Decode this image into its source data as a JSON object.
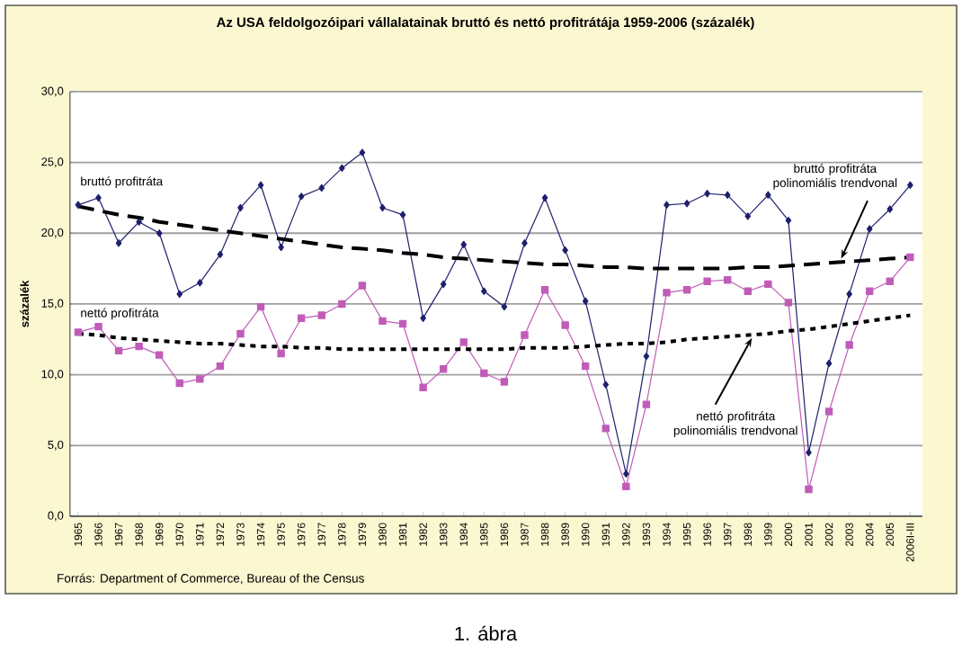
{
  "chart_data": {
    "type": "line",
    "title": "Az USA feldolgozóipari vállalatainak bruttó és nettó profitrátája 1959-2006 (százalék)",
    "ylabel": "százalék",
    "categories": [
      "1965",
      "1966",
      "1967",
      "1968",
      "1969",
      "1970",
      "1971",
      "1972",
      "1973",
      "1974",
      "1975",
      "1976",
      "1977",
      "1978",
      "1979",
      "1980",
      "1981",
      "1982",
      "1983",
      "1984",
      "1985",
      "1986",
      "1987",
      "1988",
      "1989",
      "1990",
      "1991",
      "1992",
      "1993",
      "1994",
      "1995",
      "1996",
      "1997",
      "1998",
      "1999",
      "2000",
      "2001",
      "2002",
      "2003",
      "2004",
      "2005",
      "2006I-III"
    ],
    "series": [
      {
        "name": "bruttó profitráta",
        "color": "#1f1f6e",
        "marker": "diamond",
        "values": [
          22.0,
          22.5,
          19.3,
          20.8,
          20.0,
          15.7,
          16.5,
          18.5,
          21.8,
          23.4,
          19.0,
          22.6,
          23.2,
          24.6,
          25.7,
          21.8,
          21.3,
          14.0,
          16.4,
          19.2,
          15.9,
          14.8,
          19.3,
          22.5,
          18.8,
          15.2,
          9.3,
          3.0,
          11.3,
          22.0,
          22.1,
          22.8,
          22.7,
          21.2,
          22.7,
          20.9,
          4.5,
          10.8,
          15.7,
          20.3,
          21.7,
          23.4
        ]
      },
      {
        "name": "nettó profitráta",
        "color": "#c05cb8",
        "marker": "square",
        "values": [
          13.0,
          13.4,
          11.7,
          12.0,
          11.4,
          9.4,
          9.7,
          10.6,
          12.9,
          14.8,
          11.5,
          14.0,
          14.2,
          15.0,
          16.3,
          13.8,
          13.6,
          9.1,
          10.4,
          12.3,
          10.1,
          9.5,
          12.8,
          16.0,
          13.5,
          10.6,
          6.2,
          2.1,
          7.9,
          15.8,
          16.0,
          16.6,
          16.7,
          15.9,
          16.4,
          15.1,
          1.9,
          7.4,
          12.1,
          15.9,
          16.6,
          18.3
        ]
      },
      {
        "name": "bruttó profitráta polinomiális trendvonal",
        "type": "line",
        "color": "#000000",
        "marker": "none",
        "line_style": "dashed",
        "values": [
          21.9,
          21.6,
          21.3,
          21.1,
          20.8,
          20.6,
          20.4,
          20.2,
          20.0,
          19.8,
          19.6,
          19.4,
          19.2,
          19.0,
          18.9,
          18.8,
          18.6,
          18.5,
          18.3,
          18.2,
          18.1,
          18.0,
          17.9,
          17.8,
          17.8,
          17.7,
          17.6,
          17.6,
          17.5,
          17.5,
          17.5,
          17.5,
          17.5,
          17.6,
          17.6,
          17.7,
          17.8,
          17.9,
          18.0,
          18.1,
          18.2,
          18.3
        ]
      },
      {
        "name": "nettó profitráta polinomiális trendvonal",
        "type": "line",
        "color": "#000000",
        "marker": "none",
        "line_style": "dotted",
        "values": [
          12.9,
          12.8,
          12.6,
          12.5,
          12.4,
          12.3,
          12.2,
          12.2,
          12.1,
          12.0,
          12.0,
          11.9,
          11.9,
          11.8,
          11.8,
          11.8,
          11.8,
          11.8,
          11.8,
          11.8,
          11.8,
          11.8,
          11.9,
          11.9,
          11.9,
          12.0,
          12.1,
          12.2,
          12.2,
          12.3,
          12.5,
          12.6,
          12.7,
          12.8,
          12.9,
          13.1,
          13.2,
          13.4,
          13.6,
          13.8,
          14.0,
          14.2
        ]
      }
    ],
    "ylim": [
      0,
      30
    ],
    "yticks": [
      {
        "value": 0,
        "label": "0,0"
      },
      {
        "value": 5,
        "label": "5,0"
      },
      {
        "value": 10,
        "label": "10,0"
      },
      {
        "value": 15,
        "label": "15,0"
      },
      {
        "value": 20,
        "label": "20,0"
      },
      {
        "value": 25,
        "label": "25,0"
      },
      {
        "value": 30,
        "label": "30,0"
      }
    ],
    "grid": "y",
    "annotations": [
      "Forrás: Department of Commerce, Bureau of the Census",
      "1. ábra"
    ]
  }
}
